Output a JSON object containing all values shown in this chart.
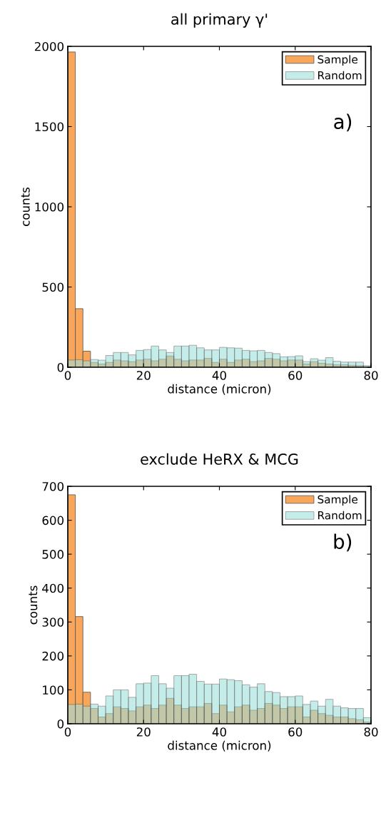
{
  "chart_data": [
    {
      "type": "histogram",
      "title": "all primary γ'",
      "xlabel": "distance (micron)",
      "ylabel": "counts",
      "bins": [
        0,
        2,
        4,
        6,
        8,
        10,
        12,
        14,
        16,
        18,
        20,
        22,
        24,
        26,
        28,
        30,
        32,
        34,
        36,
        38,
        40,
        42,
        44,
        46,
        48,
        50,
        52,
        54,
        56,
        58,
        60,
        62,
        64,
        66,
        68,
        70,
        72,
        74,
        76,
        78,
        80
      ],
      "series": [
        {
          "name": "Sample",
          "color": "#f9a65a",
          "values": [
            1965,
            365,
            100,
            30,
            20,
            30,
            45,
            40,
            35,
            45,
            50,
            40,
            50,
            70,
            50,
            40,
            45,
            45,
            55,
            30,
            50,
            30,
            45,
            50,
            35,
            40,
            55,
            50,
            40,
            45,
            45,
            20,
            35,
            25,
            20,
            15,
            15,
            12,
            10,
            0
          ]
        },
        {
          "name": "Random",
          "color": "#9ee0da",
          "values": [
            45,
            47,
            40,
            48,
            44,
            73,
            92,
            92,
            77,
            105,
            110,
            132,
            108,
            92,
            132,
            132,
            137,
            121,
            108,
            108,
            124,
            121,
            119,
            105,
            102,
            105,
            92,
            85,
            65,
            66,
            71,
            35,
            53,
            44,
            60,
            37,
            32,
            32,
            32,
            10
          ]
        }
      ],
      "xlim": [
        0,
        80
      ],
      "xticks": [
        0,
        20,
        40,
        60,
        80
      ],
      "ylim": [
        0,
        2000
      ],
      "yticks": [
        0,
        500,
        1000,
        1500,
        2000
      ],
      "legend": "top right",
      "grid": false,
      "annotations": [
        "a)"
      ]
    },
    {
      "type": "histogram",
      "title": "exclude HeRX & MCG",
      "xlabel": "distance (micron)",
      "ylabel": "counts",
      "bins": [
        0,
        2,
        4,
        6,
        8,
        10,
        12,
        14,
        16,
        18,
        20,
        22,
        24,
        26,
        28,
        30,
        32,
        34,
        36,
        38,
        40,
        42,
        44,
        46,
        48,
        50,
        52,
        54,
        56,
        58,
        60,
        62,
        64,
        66,
        68,
        70,
        72,
        74,
        76,
        78,
        80
      ],
      "series": [
        {
          "name": "Sample",
          "color": "#f9a65a",
          "values": [
            675,
            316,
            93,
            45,
            20,
            30,
            50,
            45,
            38,
            50,
            55,
            45,
            55,
            75,
            55,
            45,
            50,
            50,
            60,
            30,
            55,
            35,
            50,
            55,
            40,
            45,
            60,
            55,
            45,
            50,
            50,
            20,
            40,
            30,
            25,
            20,
            20,
            15,
            12,
            5
          ]
        },
        {
          "name": "Random",
          "color": "#9ee0da",
          "values": [
            57,
            58,
            52,
            58,
            52,
            82,
            100,
            100,
            78,
            118,
            120,
            142,
            118,
            105,
            142,
            142,
            146,
            125,
            117,
            117,
            132,
            130,
            127,
            115,
            108,
            118,
            95,
            92,
            80,
            80,
            82,
            57,
            67,
            52,
            72,
            52,
            47,
            45,
            45,
            18
          ]
        }
      ],
      "xlim": [
        0,
        80
      ],
      "xticks": [
        0,
        20,
        40,
        60,
        80
      ],
      "ylim": [
        0,
        700
      ],
      "yticks": [
        0,
        100,
        200,
        300,
        400,
        500,
        600,
        700
      ],
      "legend": "top right",
      "grid": false,
      "annotations": [
        "b)"
      ]
    }
  ]
}
